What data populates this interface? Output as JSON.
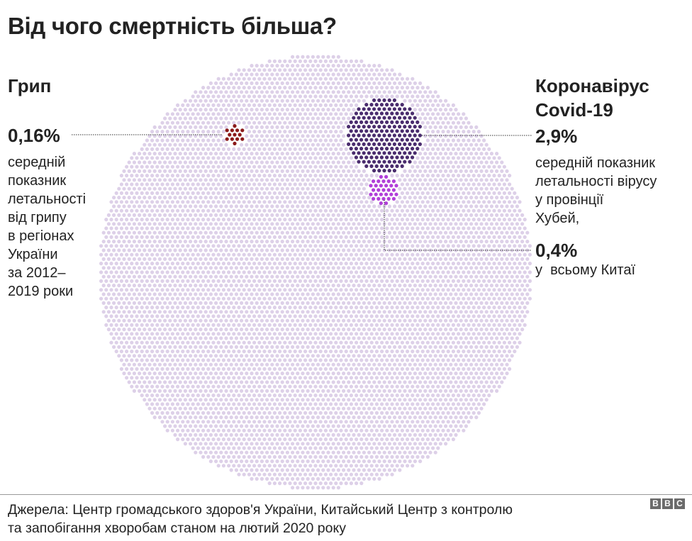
{
  "title": "Від чого смертність більша?",
  "flu": {
    "header": "Грип",
    "percent": "0,16%",
    "description_lines": [
      "середній",
      "показник",
      "летальності",
      "від грипу",
      "в регіонах",
      "України",
      "за 2012–",
      "2019 роки"
    ]
  },
  "covid": {
    "header_lines": [
      "Коронавірус",
      "Covid-19"
    ],
    "hubei_percent": "2,9%",
    "hubei_description_lines": [
      "середній показник",
      "летальності вірусу",
      "у провінції",
      "Хубей,"
    ],
    "china_percent": "0,4%",
    "china_description": "у  всьому Китаї"
  },
  "source_lines": [
    "Джерела: Центр громадського здоров'я України, Китайський Центр з контролю",
    "та запобігання хворобам станом на лютий 2020 року"
  ],
  "logo_letters": [
    "B",
    "B",
    "C"
  ],
  "colors": {
    "background_dots": "#ddd0e8",
    "flu": "#8b1a1a",
    "hubei": "#4a2c6e",
    "china": "#b13fd9",
    "leader_line": "#333333"
  },
  "chart_data": {
    "type": "proportional area (dot circles)",
    "series": [
      {
        "name": "Грип",
        "value": 0.16
      },
      {
        "name": "Хубей",
        "value": 2.9
      },
      {
        "name": "Китай",
        "value": 0.4
      }
    ],
    "total": 100
  }
}
